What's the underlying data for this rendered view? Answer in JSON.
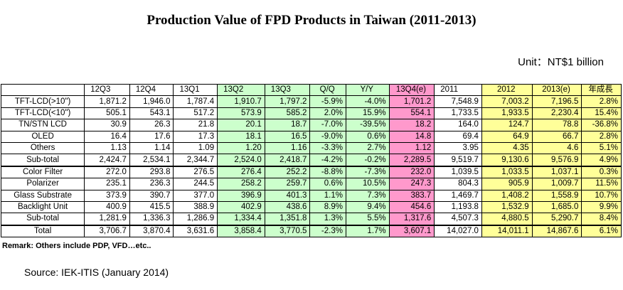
{
  "title": "Production Value of FPD Products in Taiwan (2011-2013)",
  "unit": "Unit：NT$1 billion",
  "table": {
    "headers": [
      "",
      "12Q3",
      "12Q4",
      "13Q1",
      "13Q2",
      "13Q3",
      "Q/Q",
      "Y/Y",
      "13Q4(e)",
      "2011",
      "2012",
      "2013(e)",
      "年成長"
    ],
    "rows": [
      {
        "label": "TFT-LCD(>10\")",
        "cells": [
          "1,871.2",
          "1,946.0",
          "1,787.4",
          "1,910.7",
          "1,797.2",
          "-5.9%",
          "-4.0%",
          "1,701.2",
          "7,548.9",
          "7,003.2",
          "7,196.5",
          "2.8%"
        ]
      },
      {
        "label": "TFT-LCD(<10\")",
        "cells": [
          "505.1",
          "543.1",
          "517.2",
          "573.9",
          "585.2",
          "2.0%",
          "15.9%",
          "554.1",
          "1,733.5",
          "1,933.5",
          "2,230.4",
          "15.4%"
        ]
      },
      {
        "label": "TN/STN LCD",
        "cells": [
          "30.9",
          "26.3",
          "21.8",
          "20.1",
          "18.7",
          "-7.0%",
          "-39.5%",
          "18.2",
          "164.0",
          "124.7",
          "78.8",
          "-36.8%"
        ]
      },
      {
        "label": "OLED",
        "cells": [
          "16.4",
          "17.6",
          "17.3",
          "18.1",
          "16.5",
          "-9.0%",
          "0.6%",
          "14.8",
          "69.4",
          "64.9",
          "66.7",
          "2.8%"
        ]
      },
      {
        "label": "Others",
        "cells": [
          "1.13",
          "1.14",
          "1.09",
          "1.20",
          "1.16",
          "-3.3%",
          "2.7%",
          "1.12",
          "3.95",
          "4.35",
          "4.6",
          "5.1%"
        ]
      },
      {
        "label": "Sub-total",
        "cells": [
          "2,424.7",
          "2,534.1",
          "2,344.7",
          "2,524.0",
          "2,418.7",
          "-4.2%",
          "-0.2%",
          "2,289.5",
          "9,519.7",
          "9,130.6",
          "9,576.9",
          "4.9%"
        ]
      },
      {
        "label": "Color Filter",
        "cells": [
          "272.0",
          "293.8",
          "276.5",
          "276.4",
          "252.2",
          "-8.8%",
          "-7.3%",
          "232.0",
          "1,039.5",
          "1,033.5",
          "1,037.1",
          "0.3%"
        ]
      },
      {
        "label": "Polarizer",
        "cells": [
          "235.1",
          "236.3",
          "244.5",
          "258.2",
          "259.7",
          "0.6%",
          "10.5%",
          "247.3",
          "804.3",
          "905.9",
          "1,009.7",
          "11.5%"
        ]
      },
      {
        "label": "Glass Substrate",
        "cells": [
          "373.9",
          "390.7",
          "377.0",
          "396.9",
          "401.3",
          "1.1%",
          "7.3%",
          "383.7",
          "1,469.7",
          "1,408.2",
          "1,558.9",
          "10.7%"
        ]
      },
      {
        "label": "Backlight Unit",
        "cells": [
          "400.9",
          "415.5",
          "388.9",
          "402.9",
          "438.6",
          "8.9%",
          "9.4%",
          "454.6",
          "1,193.8",
          "1,532.9",
          "1,685.0",
          "9.9%"
        ]
      },
      {
        "label": "Sub-total",
        "cells": [
          "1,281.9",
          "1,336.3",
          "1,286.9",
          "1,334.4",
          "1,351.8",
          "1.3%",
          "5.5%",
          "1,317.6",
          "4,507.3",
          "4,880.5",
          "5,290.7",
          "8.4%"
        ]
      },
      {
        "label": "Total",
        "cells": [
          "3,706.7",
          "3,870.4",
          "3,631.6",
          "3,858.4",
          "3,770.5",
          "-2.3%",
          "1.7%",
          "3,607.1",
          "14,027.0",
          "14,011.1",
          "14,867.6",
          "6.1%"
        ]
      }
    ]
  },
  "remark": "Remark: Others include PDP, VFD…etc..",
  "source": "Source: IEK-ITIS (January 2014)"
}
